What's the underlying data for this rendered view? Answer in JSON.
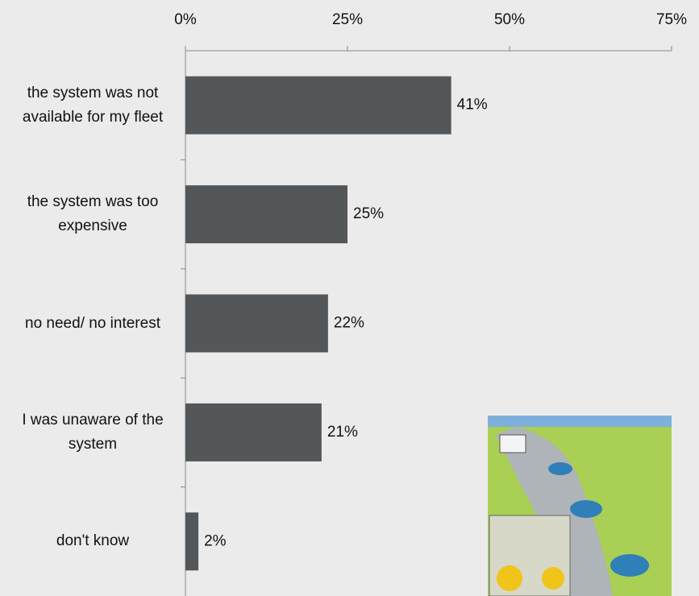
{
  "chart_data": {
    "type": "barh",
    "categories": [
      "the system was not available for my fleet",
      "the system was too expensive",
      "no need/ no interest",
      "I was unaware of the system",
      "don't know"
    ],
    "values": [
      41,
      25,
      22,
      21,
      2
    ],
    "value_labels": [
      "41%",
      "25%",
      "22%",
      "21%",
      "2%"
    ],
    "color": "#53575a",
    "xlim": [
      0,
      75
    ],
    "xticks": [
      {
        "value": 0,
        "label": "0%"
      },
      {
        "value": 25,
        "label": "25%"
      },
      {
        "value": 50,
        "label": "50%"
      },
      {
        "value": 75,
        "label": "75%"
      }
    ]
  }
}
